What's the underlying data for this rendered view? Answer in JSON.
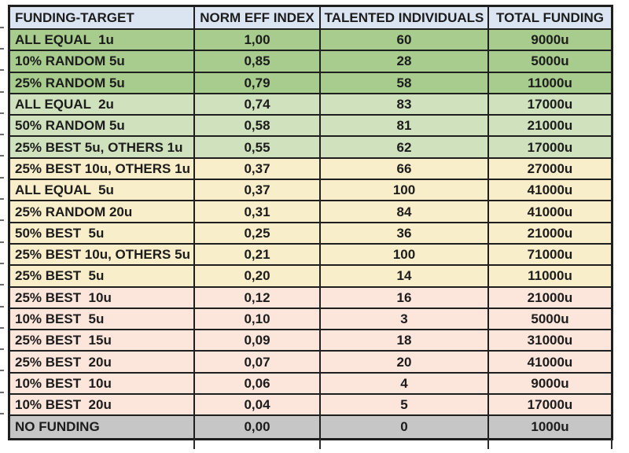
{
  "chart_data": {
    "type": "table",
    "columns": [
      "FUNDING-TARGET",
      "NORM EFF INDEX",
      "TALENTED INDIVIDUALS",
      "TOTAL FUNDING"
    ],
    "decimal_separator": ",",
    "funding_unit_suffix": "u",
    "rows": [
      {
        "funding_target": "ALL EQUAL  1u",
        "norm_eff_index": "1,00",
        "talented_individuals": 60,
        "total_funding": "9000u",
        "group": "green_dark"
      },
      {
        "funding_target": "10% RANDOM 5u",
        "norm_eff_index": "0,85",
        "talented_individuals": 28,
        "total_funding": "5000u",
        "group": "green_dark"
      },
      {
        "funding_target": "25% RANDOM 5u",
        "norm_eff_index": "0,79",
        "talented_individuals": 58,
        "total_funding": "11000u",
        "group": "green_dark"
      },
      {
        "funding_target": "ALL EQUAL  2u",
        "norm_eff_index": "0,74",
        "talented_individuals": 83,
        "total_funding": "17000u",
        "group": "green_light"
      },
      {
        "funding_target": "50% RANDOM 5u",
        "norm_eff_index": "0,58",
        "talented_individuals": 81,
        "total_funding": "21000u",
        "group": "green_light"
      },
      {
        "funding_target": "25% BEST 5u, OTHERS 1u",
        "norm_eff_index": "0,55",
        "talented_individuals": 62,
        "total_funding": "17000u",
        "group": "green_light"
      },
      {
        "funding_target": "25% BEST 10u, OTHERS 1u",
        "norm_eff_index": "0,37",
        "talented_individuals": 66,
        "total_funding": "27000u",
        "group": "cream"
      },
      {
        "funding_target": "ALL EQUAL  5u",
        "norm_eff_index": "0,37",
        "talented_individuals": 100,
        "total_funding": "41000u",
        "group": "cream"
      },
      {
        "funding_target": "25% RANDOM 20u",
        "norm_eff_index": "0,31",
        "talented_individuals": 84,
        "total_funding": "41000u",
        "group": "cream"
      },
      {
        "funding_target": "50% BEST  5u",
        "norm_eff_index": "0,25",
        "talented_individuals": 36,
        "total_funding": "21000u",
        "group": "cream"
      },
      {
        "funding_target": "25% BEST 10u, OTHERS 5u",
        "norm_eff_index": "0,21",
        "talented_individuals": 100,
        "total_funding": "71000u",
        "group": "cream"
      },
      {
        "funding_target": "25% BEST  5u",
        "norm_eff_index": "0,20",
        "talented_individuals": 14,
        "total_funding": "11000u",
        "group": "cream"
      },
      {
        "funding_target": "25% BEST  10u",
        "norm_eff_index": "0,12",
        "talented_individuals": 16,
        "total_funding": "21000u",
        "group": "pink"
      },
      {
        "funding_target": "10% BEST  5u",
        "norm_eff_index": "0,10",
        "talented_individuals": 3,
        "total_funding": "5000u",
        "group": "pink"
      },
      {
        "funding_target": "25% BEST  15u",
        "norm_eff_index": "0,09",
        "talented_individuals": 18,
        "total_funding": "31000u",
        "group": "pink"
      },
      {
        "funding_target": "25% BEST  20u",
        "norm_eff_index": "0,07",
        "talented_individuals": 20,
        "total_funding": "41000u",
        "group": "pink"
      },
      {
        "funding_target": "10% BEST  10u",
        "norm_eff_index": "0,06",
        "talented_individuals": 4,
        "total_funding": "9000u",
        "group": "pink"
      },
      {
        "funding_target": "10% BEST  20u",
        "norm_eff_index": "0,04",
        "talented_individuals": 5,
        "total_funding": "17000u",
        "group": "pink"
      },
      {
        "funding_target": "NO FUNDING",
        "norm_eff_index": "0,00",
        "talented_individuals": 0,
        "total_funding": "1000u",
        "group": "gray"
      }
    ]
  },
  "colors": {
    "header_bg": "#dbe5f1",
    "row_groups": {
      "green_dark": "#a7cc8d",
      "green_light": "#cfe2bd",
      "cream": "#f9eeca",
      "pink": "#fce6dc",
      "gray": "#c6c6c6"
    },
    "border": "#1f1f1f",
    "text": "#1c1c1c"
  }
}
